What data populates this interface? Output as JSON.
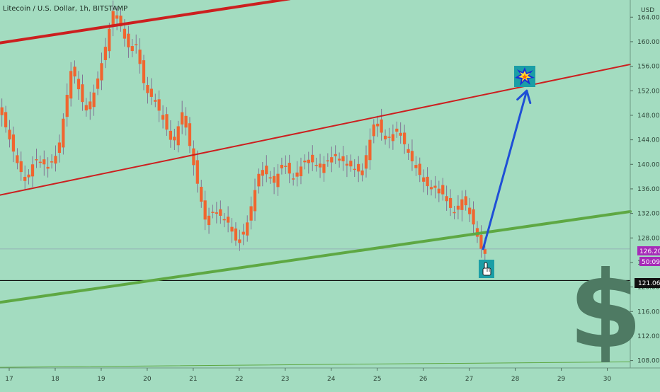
{
  "header": {
    "symbol_title": "Litecoin / U.S. Dollar, 1h, BITSTAMP"
  },
  "price_axis": {
    "currency": "USD",
    "ticks": [
      164,
      160,
      156,
      152,
      148,
      144,
      140,
      136,
      132,
      128,
      124,
      120,
      116,
      112,
      108
    ],
    "tick_labels": [
      "164.00",
      "160.00",
      "156.00",
      "152.00",
      "148.00",
      "144.00",
      "140.00",
      "136.00",
      "132.00",
      "128.00",
      "124.00",
      "120.00",
      "116.00",
      "112.00",
      "108.00"
    ]
  },
  "time_axis": {
    "tick_labels": [
      "17",
      "18",
      "19",
      "20",
      "21",
      "22",
      "23",
      "24",
      "25",
      "26",
      "27",
      "28",
      "29",
      "30"
    ]
  },
  "badges": {
    "last_price": "126.20",
    "countdown": "50:09",
    "horizontal_level": "121.06"
  },
  "colors": {
    "background": "#a3dcc0",
    "candle": "#f0652f",
    "wick": "#7a5a8a",
    "resistance_line": "#cc1f1f",
    "support_line": "#5ea843",
    "forecast_arrow": "#1f4fd6",
    "last_price_badge": "#a62bb8",
    "level_badge": "#111111",
    "dollar_sign": "#4e7a63"
  },
  "icons": {
    "target_marker": "explosion-icon",
    "pointer_marker": "hand-pointer-icon",
    "decoration": "dollar-sign-icon"
  },
  "chart_data": {
    "type": "candlestick",
    "title": "Litecoin / U.S. Dollar, 1h, BITSTAMP",
    "x_unit": "day",
    "y_unit": "USD",
    "xlim": [
      16.8,
      30.5
    ],
    "ylim": [
      106.8,
      166.8
    ],
    "grid": false,
    "price_path": [
      [
        16.8,
        150.0
      ],
      [
        17.2,
        140.5
      ],
      [
        17.4,
        137.0
      ],
      [
        17.6,
        141.0
      ],
      [
        17.9,
        139.5
      ],
      [
        18.1,
        142.0
      ],
      [
        18.4,
        156.0
      ],
      [
        18.7,
        148.5
      ],
      [
        18.9,
        152.0
      ],
      [
        19.1,
        158.0
      ],
      [
        19.3,
        165.0
      ],
      [
        19.5,
        162.0
      ],
      [
        19.6,
        159.0
      ],
      [
        19.8,
        159.5
      ],
      [
        20.0,
        152.0
      ],
      [
        20.2,
        150.5
      ],
      [
        20.4,
        147.0
      ],
      [
        20.6,
        143.0
      ],
      [
        20.8,
        148.5
      ],
      [
        20.9,
        145.5
      ],
      [
        21.1,
        138.0
      ],
      [
        21.3,
        131.0
      ],
      [
        21.5,
        132.5
      ],
      [
        21.8,
        130.5
      ],
      [
        22.0,
        127.0
      ],
      [
        22.2,
        130.0
      ],
      [
        22.5,
        139.5
      ],
      [
        22.8,
        137.0
      ],
      [
        23.0,
        140.5
      ],
      [
        23.2,
        137.5
      ],
      [
        23.5,
        141.0
      ],
      [
        23.8,
        139.5
      ],
      [
        24.1,
        141.5
      ],
      [
        24.4,
        140.0
      ],
      [
        24.7,
        138.5
      ],
      [
        25.0,
        147.5
      ],
      [
        25.2,
        144.0
      ],
      [
        25.5,
        145.5
      ],
      [
        25.8,
        140.5
      ],
      [
        26.1,
        136.5
      ],
      [
        26.4,
        136.0
      ],
      [
        26.7,
        132.0
      ],
      [
        26.9,
        134.5
      ],
      [
        27.1,
        131.0
      ],
      [
        27.3,
        126.2
      ]
    ],
    "candles": {
      "start_day": 16.8,
      "hours_per_candle": 2,
      "count": 127,
      "offsets": [
        -0.7,
        0.5,
        -0.4,
        0.8,
        -0.6,
        0.3,
        -0.8,
        0.6,
        -0.3,
        0.7,
        -0.5,
        0.4,
        -0.7,
        0.9,
        -0.2,
        0.5,
        -0.8,
        0.3,
        -0.6,
        0.7,
        -0.4,
        0.8,
        -0.5,
        0.2,
        -0.9,
        0.6,
        -0.3,
        0.5,
        -0.7,
        0.4
      ]
    },
    "trendlines": [
      {
        "name": "upper-channel",
        "color": "#cc1f1f",
        "x": [
          16.8,
          23.1
        ],
        "y": [
          159.8,
          167.0
        ],
        "style": "thick"
      },
      {
        "name": "middle-channel",
        "color": "#cc1f1f",
        "x": [
          16.8,
          30.5
        ],
        "y": [
          135.0,
          156.3
        ],
        "style": "medium"
      },
      {
        "name": "support",
        "color": "#5ea843",
        "x": [
          16.8,
          30.5
        ],
        "y": [
          117.5,
          132.3
        ],
        "style": "thick"
      },
      {
        "name": "base",
        "color": "#5ea843",
        "x": [
          16.8,
          30.5
        ],
        "y": [
          106.9,
          107.8
        ],
        "style": "thin"
      }
    ],
    "horizontal_lines": [
      {
        "name": "support-level",
        "y": 121.06,
        "color": "#111111"
      },
      {
        "name": "last-price-level",
        "y": 126.2,
        "color": "#8fa3b3"
      }
    ],
    "forecast_arrow": {
      "from": [
        27.3,
        126.2
      ],
      "to": [
        28.25,
        152.0
      ],
      "color": "#1f4fd6"
    }
  }
}
